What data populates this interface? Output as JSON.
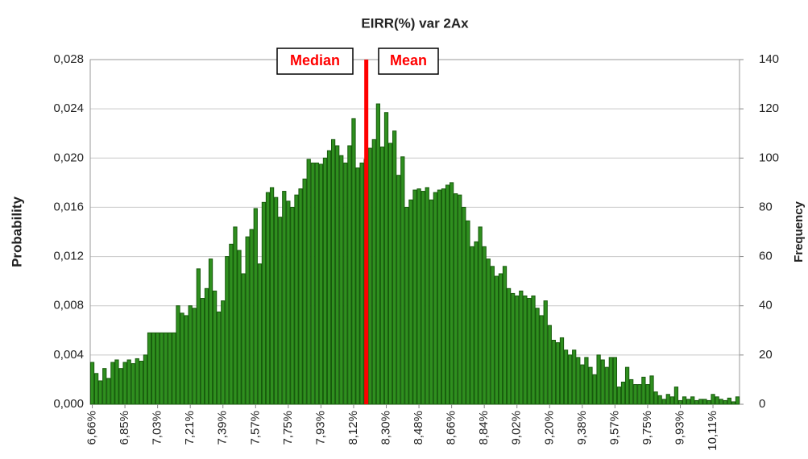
{
  "chart_data": {
    "type": "bar",
    "title": "EIRR(%) var 2Ax",
    "y_label": "Probability",
    "y2_label": "Frequency",
    "color": "#2f8f1f",
    "edge_color": "#175a0c",
    "grid": true,
    "categories": [
      "6,66%",
      null,
      null,
      null,
      null,
      null,
      null,
      null,
      "6,85%",
      null,
      null,
      null,
      null,
      null,
      null,
      null,
      "7,03%",
      null,
      null,
      null,
      null,
      null,
      null,
      null,
      "7,21%",
      null,
      null,
      null,
      null,
      null,
      null,
      null,
      "7,39%",
      null,
      null,
      null,
      null,
      null,
      null,
      null,
      "7,57%",
      null,
      null,
      null,
      null,
      null,
      null,
      null,
      "7,75%",
      null,
      null,
      null,
      null,
      null,
      null,
      null,
      "7,93%",
      null,
      null,
      null,
      null,
      null,
      null,
      null,
      "8,12%",
      null,
      null,
      null,
      null,
      null,
      null,
      null,
      "8,30%",
      null,
      null,
      null,
      null,
      null,
      null,
      null,
      "8,48%",
      null,
      null,
      null,
      null,
      null,
      null,
      null,
      "8,66%",
      null,
      null,
      null,
      null,
      null,
      null,
      null,
      "8,84%",
      null,
      null,
      null,
      null,
      null,
      null,
      null,
      "9,02%",
      null,
      null,
      null,
      null,
      null,
      null,
      null,
      "9,20%",
      null,
      null,
      null,
      null,
      null,
      null,
      null,
      "9,38%",
      null,
      null,
      null,
      null,
      null,
      null,
      null,
      "9,57%",
      null,
      null,
      null,
      null,
      null,
      null,
      null,
      "9,75%",
      null,
      null,
      null,
      null,
      null,
      null,
      null,
      "9,93%",
      null,
      null,
      null,
      null,
      null,
      null,
      null,
      "10,11%",
      null,
      null,
      null,
      null,
      null,
      null
    ],
    "values": [
      0.0034,
      0.0025,
      0.0019,
      0.0029,
      0.0021,
      0.0034,
      0.0036,
      0.0029,
      0.0034,
      0.0036,
      0.0033,
      0.0037,
      0.0035,
      0.004,
      0.0058,
      0.0058,
      0.0058,
      0.0058,
      0.0058,
      0.0058,
      0.0058,
      0.008,
      0.0074,
      0.0072,
      0.008,
      0.0078,
      0.011,
      0.0086,
      0.0094,
      0.0118,
      0.0092,
      0.0075,
      0.0084,
      0.012,
      0.013,
      0.0144,
      0.0125,
      0.0106,
      0.0136,
      0.0142,
      0.0159,
      0.0114,
      0.0164,
      0.0172,
      0.0176,
      0.0168,
      0.0152,
      0.0173,
      0.0165,
      0.016,
      0.017,
      0.0175,
      0.0183,
      0.0199,
      0.0196,
      0.0196,
      0.0195,
      0.02,
      0.0206,
      0.0215,
      0.021,
      0.0202,
      0.0196,
      0.021,
      0.0232,
      0.0192,
      0.0196,
      0.0199,
      0.0208,
      0.0215,
      0.0244,
      0.0209,
      0.0237,
      0.0212,
      0.0222,
      0.0186,
      0.0201,
      0.016,
      0.0166,
      0.0174,
      0.0175,
      0.0173,
      0.0176,
      0.0166,
      0.0172,
      0.0174,
      0.0175,
      0.0178,
      0.018,
      0.0171,
      0.017,
      0.016,
      0.0149,
      0.0128,
      0.0132,
      0.0144,
      0.0128,
      0.0118,
      0.0112,
      0.0104,
      0.0106,
      0.0112,
      0.0094,
      0.009,
      0.0088,
      0.0092,
      0.0088,
      0.0086,
      0.0088,
      0.0078,
      0.0072,
      0.0084,
      0.0064,
      0.0052,
      0.005,
      0.0054,
      0.0044,
      0.004,
      0.0044,
      0.0038,
      0.0032,
      0.0038,
      0.003,
      0.0024,
      0.004,
      0.0036,
      0.003,
      0.0038,
      0.0038,
      0.0014,
      0.0018,
      0.003,
      0.002,
      0.0016,
      0.0016,
      0.0022,
      0.0016,
      0.0023,
      0.001,
      0.0007,
      0.0004,
      0.0008,
      0.0006,
      0.0014,
      0.0003,
      0.0006,
      0.0004,
      0.0006,
      0.0003,
      0.0004,
      0.0004,
      0.0003,
      0.0008,
      0.0006,
      0.0004,
      0.0003,
      0.0005,
      0.0002,
      0.0006
    ],
    "ylim": [
      0,
      0.028
    ],
    "yticks": [
      {
        "value": 0,
        "label": "0,000"
      },
      {
        "value": 0.004,
        "label": "0,004"
      },
      {
        "value": 0.008,
        "label": "0,008"
      },
      {
        "value": 0.012,
        "label": "0,012"
      },
      {
        "value": 0.016,
        "label": "0,016"
      },
      {
        "value": 0.02,
        "label": "0,020"
      },
      {
        "value": 0.024,
        "label": "0,024"
      },
      {
        "value": 0.028,
        "label": "0,028"
      }
    ],
    "y2lim": [
      0,
      140
    ],
    "y2ticks": [
      0,
      20,
      40,
      60,
      80,
      100,
      120,
      140
    ],
    "reference_line": {
      "category_index": 67.6,
      "color": "#ff0000"
    },
    "annotations": [
      {
        "text": "Median"
      },
      {
        "text": "Mean"
      }
    ]
  }
}
